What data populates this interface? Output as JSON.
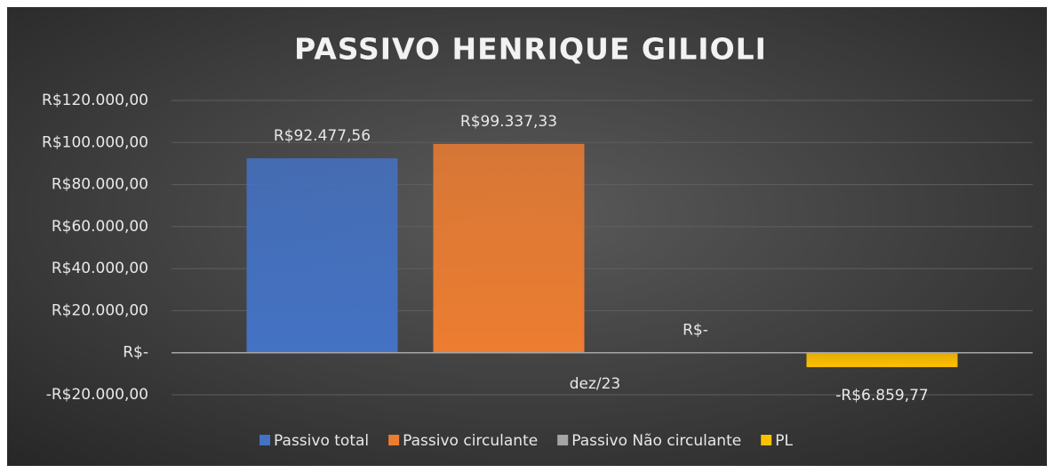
{
  "chart_data": {
    "type": "bar",
    "title": "PASSIVO HENRIQUE GILIOLI",
    "categories": [
      "dez/23"
    ],
    "series": [
      {
        "name": "Passivo total",
        "color": "#4472c4",
        "values": [
          92477.56
        ],
        "value_labels": [
          "R$92.477,56"
        ]
      },
      {
        "name": "Passivo circulante",
        "color": "#ed7d31",
        "values": [
          99337.33
        ],
        "value_labels": [
          "R$99.337,33"
        ]
      },
      {
        "name": "Passivo Não circulante",
        "color": "#a5a5a5",
        "values": [
          0
        ],
        "value_labels": [
          "R$-"
        ]
      },
      {
        "name": "PL",
        "color": "#ffc000",
        "values": [
          -6859.77
        ],
        "value_labels": [
          "-R$6.859,77"
        ]
      }
    ],
    "ylim": [
      -20000,
      120000
    ],
    "yticks": [
      {
        "value": -20000,
        "label": "-R$20.000,00"
      },
      {
        "value": 0,
        "label": "R$-"
      },
      {
        "value": 20000,
        "label": "R$20.000,00"
      },
      {
        "value": 40000,
        "label": "R$40.000,00"
      },
      {
        "value": 60000,
        "label": "R$60.000,00"
      },
      {
        "value": 80000,
        "label": "R$80.000,00"
      },
      {
        "value": 100000,
        "label": "R$100.000,00"
      },
      {
        "value": 120000,
        "label": "R$120.000,00"
      }
    ],
    "grid": true,
    "legend": "bottom"
  }
}
